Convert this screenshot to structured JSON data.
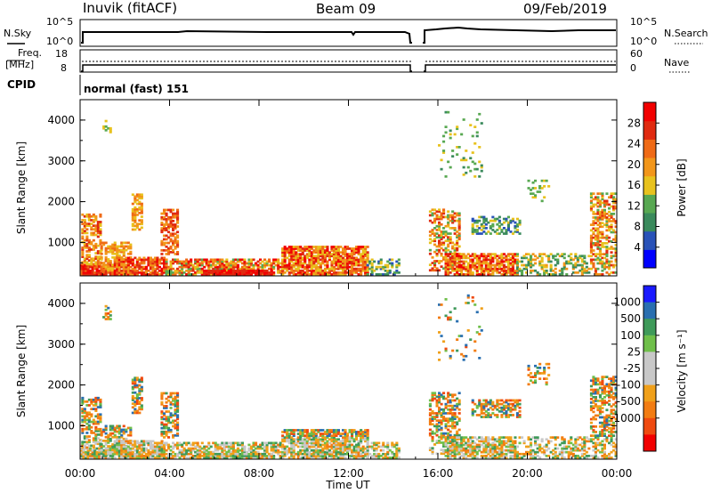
{
  "header": {
    "station": "Inuvik (fitACF)",
    "beam": "Beam 09",
    "date": "09/Feb/2019"
  },
  "top_panel": {
    "left_label": "N.Sky",
    "left_ticks": [
      "10^5",
      "10^0"
    ],
    "right_ticks": [
      "10^5",
      "10^0"
    ],
    "right_label": "N.Search"
  },
  "freq_panel": {
    "left_label_1": "Freq.",
    "left_label_2": "[MHz]",
    "left_ticks": [
      "18",
      "8"
    ],
    "right_ticks": [
      "60",
      "0"
    ],
    "right_label": "Nave"
  },
  "cpid": {
    "label": "CPID",
    "value": "normal (fast) 151"
  },
  "colors": {
    "power": [
      "#0000ff",
      "#2952b8",
      "#3a8a5c",
      "#58a852",
      "#e8c21e",
      "#f2961a",
      "#ef6a16",
      "#e02a10",
      "#f20000"
    ],
    "velocity": [
      "#f20000",
      "#ef4a10",
      "#f27c12",
      "#f0a01a",
      "#c8c8c8",
      "#c8c8c8",
      "#6fbf4a",
      "#3f9a5a",
      "#2a6fb0",
      "#1a1aff"
    ]
  },
  "chart_data": [
    {
      "type": "heatmap",
      "panel": "power",
      "ylabel": "Slant Range [km]",
      "yticks": [
        "4000",
        "3000",
        "2000",
        "1000"
      ],
      "ytick_values": [
        4000,
        3000,
        2000,
        1000
      ],
      "ylim": [
        180,
        4500
      ],
      "xlim": [
        0,
        24
      ],
      "colorbar_label": "Power [dB]",
      "colorbar_ticks": [
        "28",
        "24",
        "20",
        "16",
        "12",
        "8",
        "4"
      ],
      "colorbar_tick_values": [
        28,
        24,
        20,
        16,
        12,
        8,
        4
      ],
      "colorbar_range": [
        0,
        32
      ],
      "data_gap_hours": [
        14.9,
        15.6
      ]
    },
    {
      "type": "heatmap",
      "panel": "velocity",
      "ylabel": "Slant Range [km]",
      "yticks": [
        "4000",
        "3000",
        "2000",
        "1000"
      ],
      "ytick_values": [
        4000,
        3000,
        2000,
        1000
      ],
      "ylim": [
        180,
        4500
      ],
      "xlim": [
        0,
        24
      ],
      "colorbar_label": "Velocity [m s⁻¹]",
      "colorbar_ticks": [
        "1000",
        "500",
        "100",
        "25",
        "-25",
        "-100",
        "-500",
        "-1000"
      ],
      "data_gap_hours": [
        14.9,
        15.6
      ]
    }
  ],
  "x_axis": {
    "ticks": [
      "00:00",
      "04:00",
      "08:00",
      "12:00",
      "16:00",
      "20:00",
      "00:00"
    ],
    "tick_hours": [
      0,
      4,
      8,
      12,
      16,
      20,
      24
    ],
    "label": "Time UT"
  }
}
